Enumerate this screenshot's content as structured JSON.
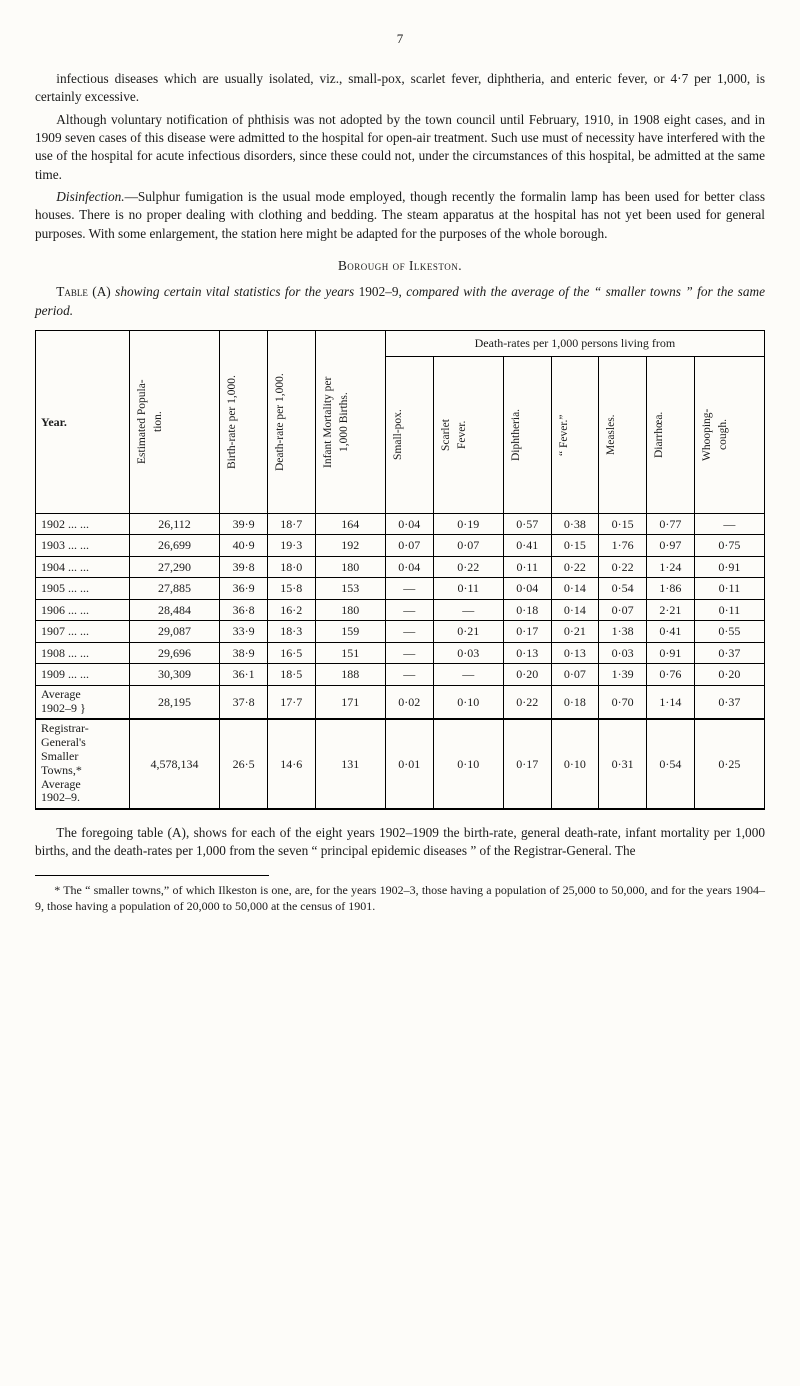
{
  "page_number": "7",
  "para1": "infectious diseases which are usually isolated, viz., small-pox, scarlet fever, diphtheria, and enteric fever, or 4·7 per 1,000, is certainly excessive.",
  "para2": "Although voluntary notification of phthisis was not adopted by the town council until February, 1910, in 1908 eight cases, and in 1909 seven cases of this disease were admitted to the hospital for open-air treatment. Such use must of necessity have interfered with the use of the hospital for acute infectious disorders, since these could not, under the circumstances of this hospital, be admitted at the same time.",
  "para3_lead": "Disinfection.",
  "para3_rest": "—Sulphur fumigation is the usual mode employed, though recently the formalin lamp has been used for better class houses. There is no proper dealing with clothing and bedding. The steam apparatus at the hospital has not yet been used for general purposes. With some enlargement, the station here might be adapted for the purposes of the whole borough.",
  "heading": "Borough of Ilkeston.",
  "caption_lead": "Table (A)",
  "caption_mid": " showing certain vital statistics for the years ",
  "caption_years": "1902–9,",
  "caption_rest1": " compared with the average of the ",
  "caption_quote": "“ smaller towns ”",
  "caption_rest2": " for the same period.",
  "table": {
    "col_year": "Year.",
    "col_pop": "Estimated Popula-\ntion.",
    "col_birth": "Birth-rate per 1,000.",
    "col_death": "Death-rate per 1,000.",
    "col_infant": "Infant Mortality per\n1,000 Births.",
    "group_header": "Death-rates per 1,000 persons living from",
    "sub_smallpox": "Small-pox.",
    "sub_scarlet": "Scarlet\nFever.",
    "sub_diph": "Diphtheria.",
    "sub_fever": "“ Fever.”",
    "sub_measles": "Measles.",
    "sub_diar": "Diarrhœa.",
    "sub_whoop": "Whooping-\ncough.",
    "rows": [
      {
        "y": "1902 ...   ...",
        "pop": "26,112",
        "b": "39·9",
        "d": "18·7",
        "i": "164",
        "c": [
          "0·04",
          "0·19",
          "0·57",
          "0·38",
          "0·15",
          "0·77",
          "—"
        ]
      },
      {
        "y": "1903 ...   ...",
        "pop": "26,699",
        "b": "40·9",
        "d": "19·3",
        "i": "192",
        "c": [
          "0·07",
          "0·07",
          "0·41",
          "0·15",
          "1·76",
          "0·97",
          "0·75"
        ]
      },
      {
        "y": "1904 ...   ...",
        "pop": "27,290",
        "b": "39·8",
        "d": "18·0",
        "i": "180",
        "c": [
          "0·04",
          "0·22",
          "0·11",
          "0·22",
          "0·22",
          "1·24",
          "0·91"
        ]
      },
      {
        "y": "1905 ...   ...",
        "pop": "27,885",
        "b": "36·9",
        "d": "15·8",
        "i": "153",
        "c": [
          "—",
          "0·11",
          "0·04",
          "0·14",
          "0·54",
          "1·86",
          "0·11"
        ]
      },
      {
        "y": "1906 ...   ...",
        "pop": "28,484",
        "b": "36·8",
        "d": "16·2",
        "i": "180",
        "c": [
          "—",
          "—",
          "0·18",
          "0·14",
          "0·07",
          "2·21",
          "0·11"
        ]
      },
      {
        "y": "1907 ...   ...",
        "pop": "29,087",
        "b": "33·9",
        "d": "18·3",
        "i": "159",
        "c": [
          "—",
          "0·21",
          "0·17",
          "0·21",
          "1·38",
          "0·41",
          "0·55"
        ]
      },
      {
        "y": "1908 ...   ...",
        "pop": "29,696",
        "b": "38·9",
        "d": "16·5",
        "i": "151",
        "c": [
          "—",
          "0·03",
          "0·13",
          "0·13",
          "0·03",
          "0·91",
          "0·37"
        ]
      },
      {
        "y": "1909 ...   ...",
        "pop": "30,309",
        "b": "36·1",
        "d": "18·5",
        "i": "188",
        "c": [
          "—",
          "—",
          "0·20",
          "0·07",
          "1·39",
          "0·76",
          "0·20"
        ]
      }
    ],
    "avg_label": "Average\n1902–9 }",
    "avg": {
      "pop": "28,195",
      "b": "37·8",
      "d": "17·7",
      "i": "171",
      "c": [
        "0·02",
        "0·10",
        "0·22",
        "0·18",
        "0·70",
        "1·14",
        "0·37"
      ]
    },
    "reg_label": "Registrar-\nGeneral's\nSmaller\nTowns,*\nAverage\n1902–9.",
    "reg": {
      "pop": "4,578,134",
      "b": "26·5",
      "d": "14·6",
      "i": "131",
      "c": [
        "0·01",
        "0·10",
        "0·17",
        "0·10",
        "0·31",
        "0·54",
        "0·25"
      ]
    }
  },
  "closing": "The foregoing table (A), shows for each of the eight years 1902–1909 the birth-rate, general death-rate, infant mortality per 1,000 births, and the death-rates per 1,000 from the seven “ principal epidemic diseases ” of the Registrar-General. The",
  "footnote": "* The “ smaller towns,” of which Ilkeston is one, are, for the years 1902–3, those having a population of 25,000 to 50,000, and for the years 1904–9, those having a population of 20,000 to 50,000 at the census of 1901."
}
